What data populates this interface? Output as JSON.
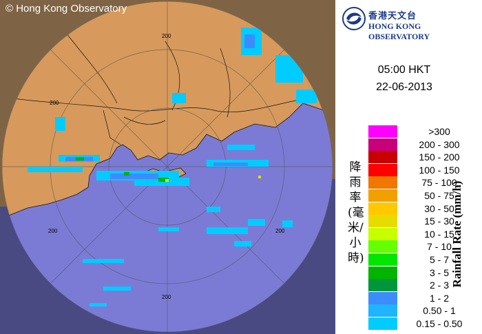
{
  "map": {
    "copyright": "© Hong Kong Observatory",
    "range_ring_label": "200"
  },
  "logo": {
    "cn": "香港天文台",
    "en": "HONG KONG OBSERVATORY"
  },
  "time": "05:00 HKT",
  "date": "22-06-2013",
  "legend": {
    "title_cn": "降雨率(毫米/小時)",
    "title_en": "Rainfall Rate (mm/h)",
    "items": [
      {
        "label": ">300",
        "color": "#ff00ff"
      },
      {
        "label": "200 - 300",
        "color": "#c8007a"
      },
      {
        "label": "150 - 200",
        "color": "#c80000"
      },
      {
        "label": "100 - 150",
        "color": "#ff0000"
      },
      {
        "label": "75 - 100",
        "color": "#f07800"
      },
      {
        "label": "50 - 75",
        "color": "#f0a000"
      },
      {
        "label": "30 - 50",
        "color": "#ffc800"
      },
      {
        "label": "15 - 30",
        "color": "#e6dc00"
      },
      {
        "label": "10 - 15",
        "color": "#c8ff00"
      },
      {
        "label": "7 - 10",
        "color": "#64ff00"
      },
      {
        "label": "5 - 7",
        "color": "#00e600"
      },
      {
        "label": "3 - 5",
        "color": "#00b400"
      },
      {
        "label": "2 - 3",
        "color": "#00963c"
      },
      {
        "label": "1 - 2",
        "color": "#3c8cff"
      },
      {
        "label": "0.50 - 1",
        "color": "#1eb4ff"
      },
      {
        "label": "0.15 - 0.50",
        "color": "#00ccff"
      }
    ]
  }
}
